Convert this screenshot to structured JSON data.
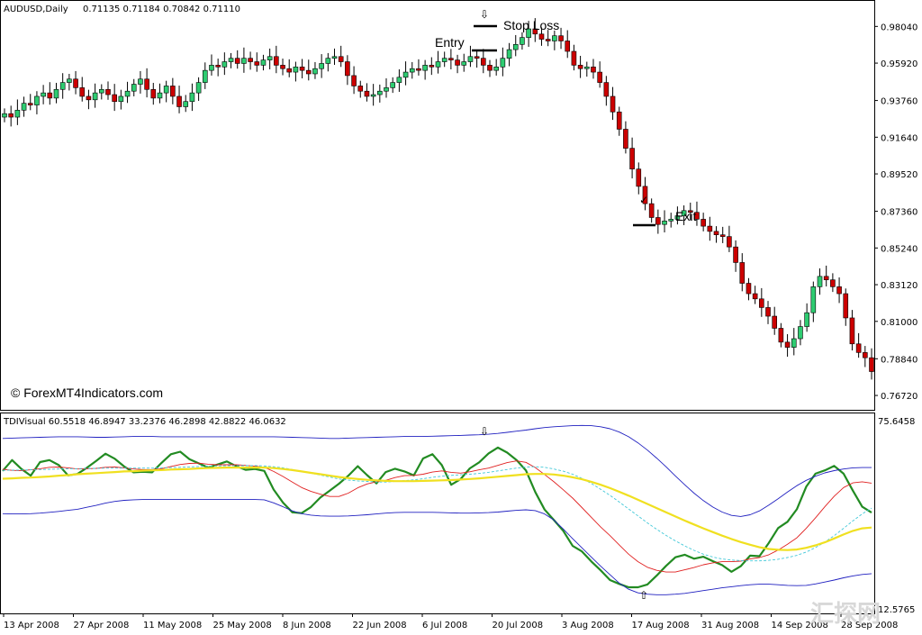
{
  "chart_data": [
    {
      "type": "candlestick",
      "title": "AUDUSD,Daily",
      "ohlc_header": "0.71135 0.71184 0.70842 0.71110",
      "ylim": [
        0.7615,
        0.9915
      ],
      "y_ticks": [
        "0.98040",
        "0.95920",
        "0.93760",
        "0.91640",
        "0.89520",
        "0.87360",
        "0.85240",
        "0.83120",
        "0.81000",
        "0.78840",
        "0.76720"
      ],
      "x_ticks": [
        "13 Apr 2008",
        "27 Apr 2008",
        "11 May 2008",
        "25 May 2008",
        "8 Jun 2008",
        "22 Jun 2008",
        "6 Jul 2008",
        "20 Jul 2008",
        "3 Aug 2008",
        "17 Aug 2008",
        "31 Aug 2008",
        "14 Sep 2008",
        "28 Sep 2008"
      ],
      "close_series": [
        0.93,
        0.928,
        0.932,
        0.936,
        0.935,
        0.94,
        0.942,
        0.939,
        0.944,
        0.948,
        0.95,
        0.945,
        0.94,
        0.938,
        0.942,
        0.944,
        0.941,
        0.937,
        0.94,
        0.943,
        0.947,
        0.95,
        0.944,
        0.939,
        0.942,
        0.946,
        0.94,
        0.934,
        0.937,
        0.942,
        0.948,
        0.955,
        0.958,
        0.957,
        0.96,
        0.962,
        0.959,
        0.962,
        0.96,
        0.958,
        0.961,
        0.963,
        0.958,
        0.956,
        0.954,
        0.957,
        0.955,
        0.953,
        0.956,
        0.959,
        0.962,
        0.963,
        0.96,
        0.952,
        0.946,
        0.943,
        0.94,
        0.941,
        0.943,
        0.945,
        0.948,
        0.951,
        0.954,
        0.956,
        0.955,
        0.958,
        0.957,
        0.96,
        0.962,
        0.961,
        0.958,
        0.96,
        0.963,
        0.962,
        0.958,
        0.955,
        0.957,
        0.962,
        0.967,
        0.97,
        0.974,
        0.979,
        0.976,
        0.973,
        0.972,
        0.975,
        0.972,
        0.966,
        0.958,
        0.956,
        0.957,
        0.954,
        0.948,
        0.94,
        0.931,
        0.921,
        0.91,
        0.898,
        0.888,
        0.878,
        0.87,
        0.866,
        0.868,
        0.869,
        0.871,
        0.874,
        0.873,
        0.869,
        0.865,
        0.862,
        0.86,
        0.859,
        0.853,
        0.844,
        0.832,
        0.826,
        0.823,
        0.818,
        0.813,
        0.806,
        0.798,
        0.795,
        0.8,
        0.807,
        0.815,
        0.83,
        0.836,
        0.834,
        0.83,
        0.826,
        0.812,
        0.797,
        0.792,
        0.789,
        0.781
      ],
      "annotations": [
        {
          "text": "Entry",
          "marker": "entry-line"
        },
        {
          "text": "Stop Loss",
          "marker": "stop-loss-line"
        },
        {
          "text": "Exit",
          "marker": "exit-line"
        },
        {
          "text": "⇩",
          "marker": "sell-arrow"
        },
        {
          "text": "✓",
          "marker": "exit-check"
        }
      ]
    },
    {
      "type": "line",
      "title": "TDIVisual 60.5518 46.8947 33.2376 46.2898 42.8822 46.0632",
      "ylim": [
        10,
        82
      ],
      "y_ticks": [
        "75.6458",
        "12.5765"
      ],
      "arrows": [
        "⇩",
        "⇧"
      ],
      "series": [
        {
          "color": "#228B22",
          "values": [
            61.3,
            65.2,
            62.0,
            59.6,
            64.5,
            65.2,
            63.4,
            59.7,
            60.2,
            62.4,
            64.9,
            67.5,
            65.7,
            62.9,
            60.8,
            61.0,
            60.8,
            64.2,
            67.3,
            68.2,
            65.5,
            64.0,
            62.5,
            63.6,
            64.7,
            63.0,
            61.7,
            62.0,
            61.3,
            54.6,
            49.9,
            46.4,
            46.1,
            48.3,
            51.7,
            54.2,
            56.7,
            59.6,
            63.0,
            59.8,
            56.8,
            60.9,
            62.1,
            61.1,
            59.7,
            65.8,
            67.3,
            63.4,
            56.3,
            58.3,
            62.2,
            64.4,
            67.6,
            69.7,
            67.9,
            65.2,
            61.5,
            53.7,
            47.4,
            43.6,
            39.7,
            34.3,
            32.3,
            28.7,
            25.5,
            22.0,
            20.6,
            19.4,
            19.4,
            20.4,
            23.6,
            27.1,
            30.2,
            31.1,
            29.7,
            30.4,
            28.8,
            27.4,
            25.0,
            27.0,
            30.8,
            30.6,
            35.4,
            40.7,
            43.0,
            47.5,
            55.6,
            60.3,
            61.5,
            63.1,
            60.3,
            54.2,
            48.4,
            46.3
          ]
        },
        {
          "color": "#e02020",
          "values": [
            61.9,
            61.5,
            61.4,
            61.7,
            62.1,
            62.6,
            62.7,
            62.4,
            62.0,
            62.1,
            62.2,
            62.6,
            62.7,
            62.4,
            62.0,
            61.8,
            61.8,
            62.1,
            62.9,
            63.6,
            64.0,
            64.1,
            63.7,
            63.5,
            63.5,
            63.5,
            63.3,
            63.0,
            62.6,
            61.1,
            59.3,
            57.3,
            55.3,
            53.9,
            52.9,
            52.1,
            52.1,
            53.3,
            55.2,
            56.6,
            57.4,
            57.9,
            58.9,
            59.6,
            59.7,
            60.1,
            60.9,
            61.3,
            60.8,
            60.5,
            61.0,
            61.7,
            62.3,
            63.3,
            64.3,
            64.9,
            64.4,
            62.5,
            60.0,
            57.4,
            54.5,
            51.5,
            48.1,
            44.6,
            41.1,
            38.0,
            34.6,
            31.3,
            28.6,
            26.6,
            25.5,
            24.9,
            24.9,
            25.7,
            26.5,
            27.5,
            28.2,
            28.6,
            28.6,
            28.8,
            29.6,
            30.1,
            31.1,
            32.8,
            34.9,
            37.2,
            40.6,
            44.4,
            48.4,
            52.2,
            55.3,
            57.0,
            57.4,
            56.9
          ]
        },
        {
          "color": "#40c8d8",
          "values": [
            61.5,
            61.6,
            61.6,
            61.7,
            61.8,
            61.9,
            62.0,
            62.1,
            62.1,
            62.2,
            62.2,
            62.3,
            62.3,
            62.3,
            62.3,
            62.3,
            62.3,
            62.4,
            62.5,
            62.6,
            62.7,
            62.9,
            63.0,
            63.1,
            63.2,
            63.2,
            63.2,
            63.2,
            63.1,
            62.8,
            62.4,
            61.8,
            61.2,
            60.5,
            59.8,
            59.1,
            58.4,
            58.0,
            57.7,
            57.5,
            57.3,
            57.3,
            57.5,
            57.8,
            58.1,
            58.5,
            59.0,
            59.4,
            59.7,
            59.9,
            60.1,
            60.4,
            60.8,
            61.3,
            61.8,
            62.3,
            62.7,
            62.8,
            62.6,
            62.0,
            61.2,
            60.1,
            58.6,
            56.8,
            54.7,
            52.5,
            50.1,
            47.6,
            45.1,
            42.6,
            40.3,
            38.1,
            36.1,
            34.3,
            32.7,
            31.3,
            30.3,
            29.6,
            29.2,
            29.0,
            28.9,
            28.9,
            29.1,
            29.5,
            30.1,
            30.9,
            32.1,
            33.7,
            35.7,
            38.0,
            40.6,
            43.3,
            45.8,
            47.9
          ]
        },
        {
          "color": "#f0e020",
          "values": [
            58.5,
            58.6,
            58.8,
            58.9,
            59.1,
            59.3,
            59.6,
            59.8,
            60.1,
            60.3,
            60.5,
            60.7,
            60.9,
            61.1,
            61.2,
            61.4,
            61.5,
            61.6,
            61.8,
            61.9,
            62.0,
            62.2,
            62.3,
            62.4,
            62.5,
            62.5,
            62.5,
            62.5,
            62.5,
            62.3,
            62.0,
            61.6,
            61.1,
            60.6,
            60.1,
            59.6,
            59.1,
            58.7,
            58.4,
            58.1,
            57.9,
            57.7,
            57.6,
            57.6,
            57.6,
            57.7,
            57.8,
            57.9,
            58.0,
            58.2,
            58.4,
            58.6,
            58.9,
            59.2,
            59.5,
            59.8,
            60.1,
            60.2,
            60.2,
            60.0,
            59.6,
            59.0,
            58.3,
            57.4,
            56.3,
            55.1,
            53.8,
            52.4,
            50.9,
            49.4,
            47.9,
            46.4,
            44.9,
            43.4,
            42.0,
            40.6,
            39.3,
            38.0,
            36.8,
            35.7,
            34.7,
            33.8,
            33.2,
            32.9,
            32.8,
            33.0,
            33.6,
            34.5,
            35.6,
            37.0,
            38.4,
            39.7,
            40.6,
            40.9
          ]
        },
        {
          "color": "#2020c0",
          "values": [
            73.0,
            73.1,
            73.2,
            73.3,
            73.4,
            73.5,
            73.6,
            73.6,
            73.6,
            73.5,
            73.4,
            73.4,
            73.5,
            73.6,
            73.7,
            73.7,
            73.7,
            73.6,
            73.6,
            73.6,
            73.6,
            73.6,
            73.6,
            73.6,
            73.6,
            73.6,
            73.6,
            73.6,
            73.6,
            73.6,
            73.5,
            73.4,
            73.3,
            73.2,
            73.1,
            73.0,
            73.0,
            73.1,
            73.2,
            73.3,
            73.4,
            73.5,
            73.6,
            73.7,
            73.7,
            73.7,
            73.8,
            73.9,
            74.0,
            74.1,
            74.2,
            74.3,
            74.5,
            74.8,
            75.2,
            75.6,
            76.0,
            76.5,
            76.9,
            77.2,
            77.4,
            77.6,
            77.7,
            77.6,
            77.2,
            76.5,
            75.3,
            73.6,
            71.4,
            68.8,
            65.9,
            62.8,
            59.5,
            56.3,
            53.3,
            50.6,
            48.3,
            46.5,
            45.3,
            44.9,
            45.5,
            46.9,
            49.0,
            51.3,
            53.7,
            56.0,
            57.9,
            59.4,
            60.6,
            61.4,
            62.0,
            62.4,
            62.5,
            62.5
          ]
        },
        {
          "color": "#2020c0",
          "values": [
            45.9,
            45.8,
            45.8,
            45.9,
            46.1,
            46.4,
            46.7,
            47.1,
            47.5,
            48.2,
            48.9,
            49.7,
            50.3,
            50.7,
            50.9,
            51.0,
            51.0,
            51.0,
            51.0,
            51.0,
            51.0,
            51.0,
            51.0,
            51.0,
            51.0,
            51.0,
            51.0,
            51.0,
            50.9,
            49.8,
            48.4,
            46.9,
            45.9,
            45.4,
            45.1,
            45.0,
            45.0,
            45.1,
            45.3,
            45.5,
            45.8,
            46.1,
            46.3,
            46.4,
            46.4,
            46.4,
            46.4,
            46.3,
            46.2,
            46.1,
            46.1,
            46.2,
            46.3,
            46.5,
            46.8,
            47.1,
            47.3,
            47.0,
            45.8,
            43.6,
            40.4,
            36.9,
            33.6,
            30.3,
            27.0,
            23.9,
            20.9,
            18.7,
            17.4,
            16.9,
            16.7,
            16.7,
            16.9,
            17.2,
            17.7,
            18.2,
            18.7,
            19.2,
            19.6,
            20.0,
            20.3,
            20.5,
            20.5,
            20.3,
            20.1,
            20.0,
            20.1,
            20.6,
            21.3,
            22.0,
            22.8,
            23.5,
            24.0,
            24.3
          ]
        }
      ]
    }
  ],
  "branding": {
    "copyright": "© ForexMT4Indicators.com",
    "watermark": "汇探网"
  }
}
